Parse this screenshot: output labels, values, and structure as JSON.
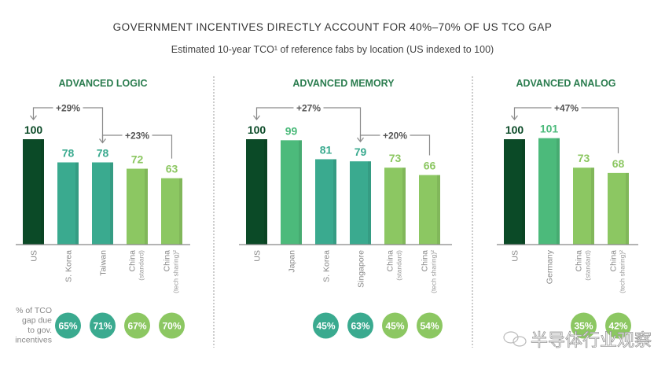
{
  "chart_data": {
    "type": "bar",
    "title": "GOVERNMENT INCENTIVES DIRECTLY ACCOUNT FOR 40%–70% OF US TCO GAP",
    "subtitle": "Estimated 10-year TCO¹ of reference fabs by location (US indexed to 100)",
    "row_label": "% of TCO gap due to gov. incentives",
    "row_label_lines": [
      "% of TCO",
      "gap due",
      "to gov.",
      "incentives"
    ],
    "colors": {
      "us": "#0b4a27",
      "teal": "#3aaa8f",
      "mid": "#4cba7b",
      "light": "#8cc762",
      "title": "#2b7d4f",
      "text": "#333333",
      "axis": "#888888",
      "bracket": "#8a8a8a"
    },
    "panels": [
      {
        "title": "ADVANCED LOGIC",
        "bars": [
          {
            "label": "US",
            "sub": "",
            "value": 100,
            "tone": "us",
            "pct": null
          },
          {
            "label": "S. Korea",
            "sub": "",
            "value": 78,
            "tone": "teal",
            "pct": "65%"
          },
          {
            "label": "Taiwan",
            "sub": "",
            "value": 78,
            "tone": "teal",
            "pct": "71%"
          },
          {
            "label": "China",
            "sub": "(standard)",
            "value": 72,
            "tone": "light",
            "pct": "67%"
          },
          {
            "label": "China",
            "sub": "(tech sharing)²",
            "value": 63,
            "tone": "light",
            "pct": "70%"
          }
        ],
        "brackets": [
          {
            "from": 2,
            "to": 0,
            "label": "+29%",
            "level": 0
          },
          {
            "from": 4,
            "to": 2,
            "label": "+23%",
            "level": 1
          }
        ]
      },
      {
        "title": "ADVANCED MEMORY",
        "bars": [
          {
            "label": "US",
            "sub": "",
            "value": 100,
            "tone": "us",
            "pct": null
          },
          {
            "label": "Japan",
            "sub": "",
            "value": 99,
            "tone": "mid",
            "pct": null
          },
          {
            "label": "S. Korea",
            "sub": "",
            "value": 81,
            "tone": "teal",
            "pct": "45%"
          },
          {
            "label": "Singapore",
            "sub": "",
            "value": 79,
            "tone": "teal",
            "pct": "63%"
          },
          {
            "label": "China",
            "sub": "(standard)",
            "value": 73,
            "tone": "light",
            "pct": "45%"
          },
          {
            "label": "China",
            "sub": "(tech sharing)²",
            "value": 66,
            "tone": "light",
            "pct": "54%"
          }
        ],
        "brackets": [
          {
            "from": 3,
            "to": 0,
            "label": "+27%",
            "level": 0
          },
          {
            "from": 5,
            "to": 3,
            "label": "+20%",
            "level": 1
          }
        ]
      },
      {
        "title": "ADVANCED ANALOG",
        "bars": [
          {
            "label": "US",
            "sub": "",
            "value": 100,
            "tone": "us",
            "pct": null
          },
          {
            "label": "Germany",
            "sub": "",
            "value": 101,
            "tone": "mid",
            "pct": null
          },
          {
            "label": "China",
            "sub": "(standard)",
            "value": 73,
            "tone": "light",
            "pct": "35%"
          },
          {
            "label": "China",
            "sub": "(tech sharing)²",
            "value": 68,
            "tone": "light",
            "pct": "42%"
          }
        ],
        "brackets": [
          {
            "from": 3,
            "to": 0,
            "label": "+47%",
            "level": 0
          }
        ]
      }
    ]
  },
  "watermark": "半导体行业观察"
}
